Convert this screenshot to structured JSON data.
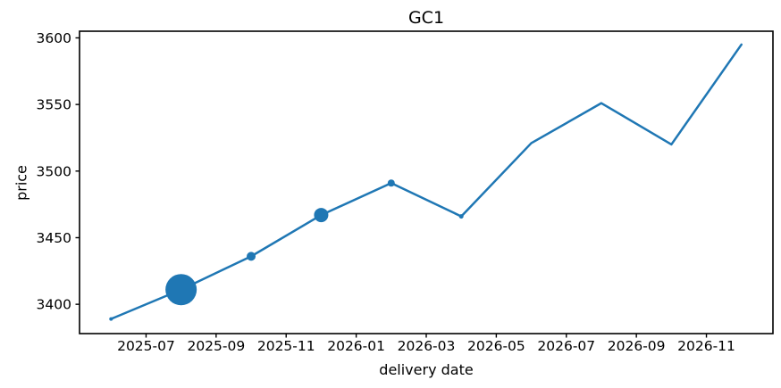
{
  "figure": {
    "background": "#ffffff"
  },
  "chart_data": {
    "type": "line",
    "title": "GC1",
    "xlabel": "delivery date",
    "ylabel": "price",
    "x": [
      "2025-06",
      "2025-08",
      "2025-10",
      "2025-12",
      "2026-02",
      "2026-04",
      "2026-06",
      "2026-08",
      "2026-10",
      "2026-12"
    ],
    "y": [
      3389,
      3411,
      3436,
      3467,
      3491,
      3466,
      3521,
      3551,
      3520,
      3595
    ],
    "marker_diameters_px": [
      4,
      35,
      10,
      16,
      8,
      5,
      0,
      0,
      0,
      0
    ],
    "marker_style": "circle",
    "line_color": "#1f77b4",
    "marker_color": "#1f77b4",
    "axis_color": "#000000",
    "text_color": "#000000",
    "xticks": [
      "2025-07",
      "2025-09",
      "2025-11",
      "2026-01",
      "2026-03",
      "2026-05",
      "2026-07",
      "2026-09",
      "2026-11"
    ],
    "yticks": [
      3400,
      3450,
      3500,
      3550,
      3600
    ],
    "xlim": [
      "2025-05-04",
      "2026-12-28"
    ],
    "ylim": [
      3378,
      3605
    ],
    "grid": false,
    "legend": false
  }
}
